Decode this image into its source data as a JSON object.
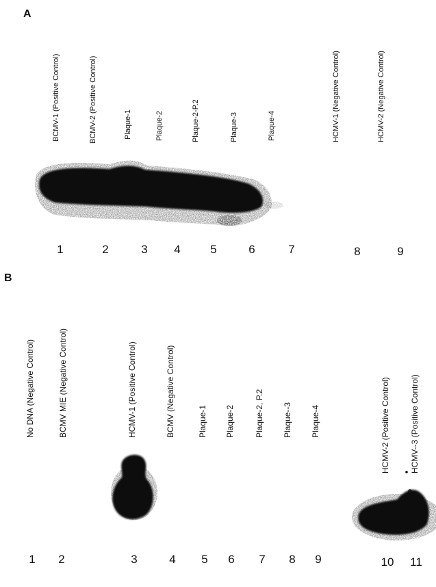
{
  "panels": [
    {
      "letter": "A",
      "lane_labels": [
        "BCMV-1 (Positive Control)",
        "BCMV-2 (Positive Control)",
        "Plaque-1",
        "Plaque-2",
        "Plaque-2-P.2",
        "Plaque-3",
        "Plaque-4",
        "HCMV-1 (Negative Control)",
        "HCMV-2 (Negative Control)"
      ],
      "lane_numbers": [
        "1",
        "2",
        "3",
        "4",
        "5",
        "6",
        "7",
        "8",
        "9"
      ]
    },
    {
      "letter": "B",
      "lane_labels": [
        "No DNA (Negative Control)",
        "BCMV MIE (Negative Control)",
        "HCMV-1 (Positive Control)",
        "BCMV (Negative Control)",
        "Plaque-1",
        "Plaque-2",
        "Plaque-2, P.2",
        "Plaque--3",
        "Plaque-4",
        "HCMV-2 (Positive Control)",
        "HCMV--3 (Positive Control)"
      ],
      "lane_numbers": [
        "1",
        "2",
        "3",
        "4",
        "5",
        "6",
        "7",
        "8",
        "9",
        "10",
        "11"
      ]
    }
  ],
  "colors": {
    "ink": "#111111",
    "blot": "#0d0d0d",
    "background": "#ffffff"
  }
}
